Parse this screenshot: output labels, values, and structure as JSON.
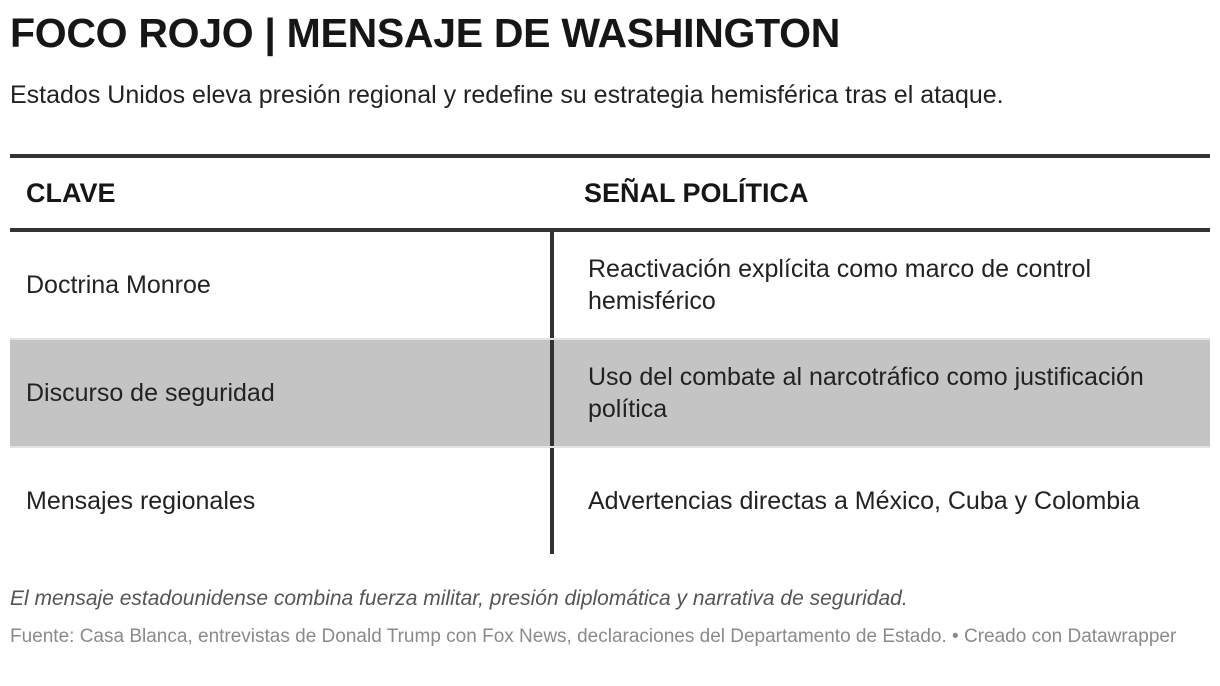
{
  "title": "FOCO ROJO | MENSAJE DE WASHINGTON",
  "subtitle": "Estados Unidos eleva presión regional y redefine su estrategia hemisférica tras el ataque.",
  "table": {
    "headers": [
      "CLAVE",
      "SEÑAL POLÍTICA"
    ],
    "rows": [
      {
        "clave": "Doctrina Monroe",
        "senal": "Reactivación explícita como marco de control hemisférico"
      },
      {
        "clave": "Discurso de seguridad",
        "senal": "Uso del combate al narcotráfico como justificación política"
      },
      {
        "clave": "Mensajes regionales",
        "senal": "Advertencias directas a México, Cuba y Colombia"
      }
    ]
  },
  "note": "El mensaje estadounidense combina fuerza militar, presión diplomática y narrativa de seguridad.",
  "source": "Fuente: Casa Blanca, entrevistas de Donald Trump con Fox News, declaraciones del Departamento de Estado. • Creado con Datawrapper",
  "colors": {
    "shaded_row": "#c4c4c4",
    "rule": "#333333"
  }
}
